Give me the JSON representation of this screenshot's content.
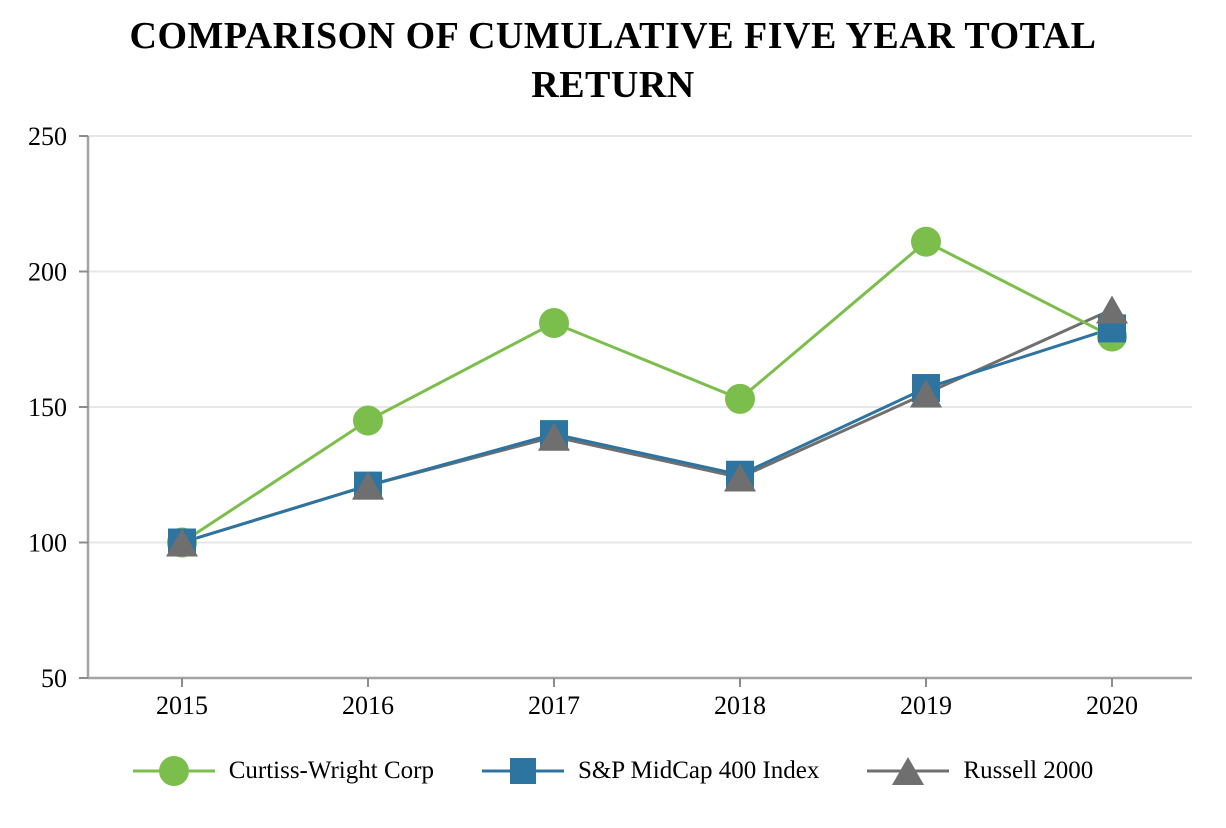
{
  "chart_data": {
    "type": "line",
    "title": "COMPARISON OF CUMULATIVE FIVE YEAR TOTAL RETURN",
    "categories": [
      "2015",
      "2016",
      "2017",
      "2018",
      "2019",
      "2020"
    ],
    "series": [
      {
        "name": "Curtiss-Wright Corp",
        "color": "#7cbe4c",
        "marker": "circle",
        "values": [
          100,
          145,
          181,
          153,
          211,
          176
        ]
      },
      {
        "name": "S&P MidCap 400 Index",
        "color": "#2e74a0",
        "marker": "square",
        "values": [
          100,
          121,
          140,
          125,
          157,
          179
        ]
      },
      {
        "name": "Russell 2000",
        "color": "#6f6f6f",
        "marker": "triangle",
        "values": [
          100,
          121,
          139,
          124,
          155,
          186
        ]
      }
    ],
    "xlabel": "",
    "ylabel": "",
    "ylim": [
      50,
      250
    ],
    "y_ticks": [
      50,
      100,
      150,
      200,
      250
    ],
    "grid": "horizontal-only",
    "legend_position": "bottom"
  }
}
